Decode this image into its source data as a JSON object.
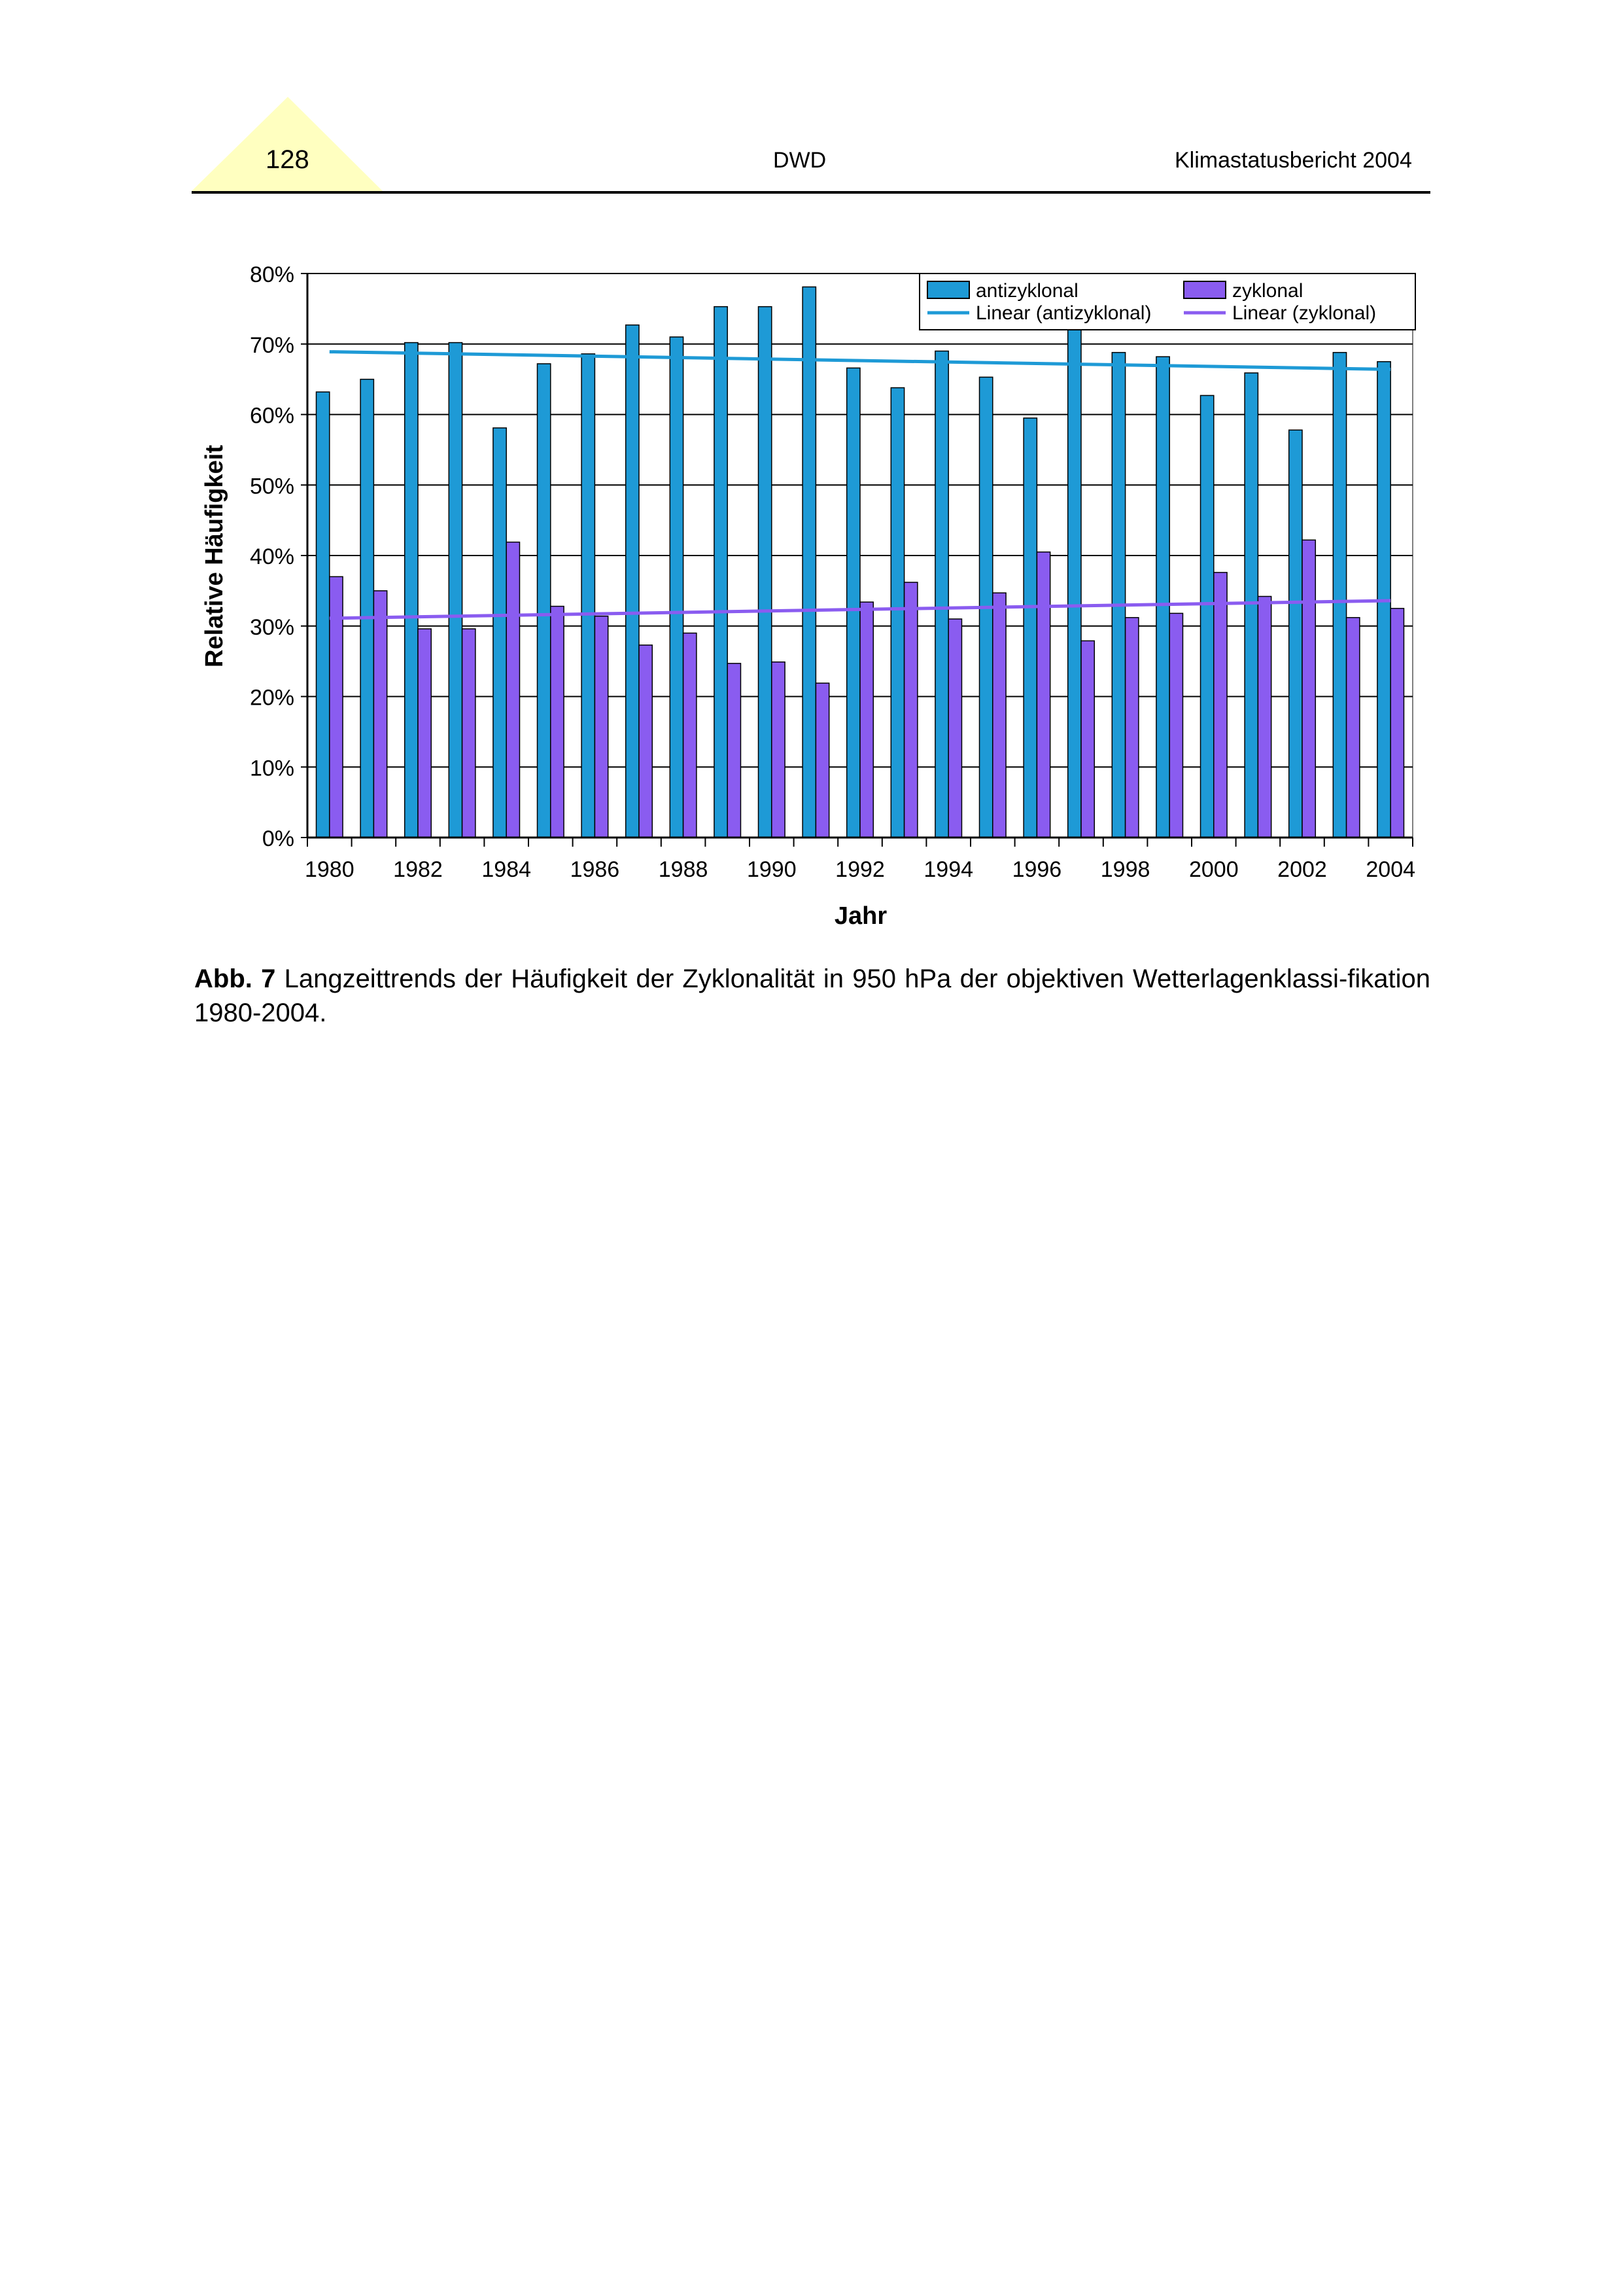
{
  "header": {
    "page_number": "128",
    "center": "DWD",
    "right": "Klimastatusbericht 2004",
    "tab_color": "#ffffc0"
  },
  "caption": {
    "label": "Abb. 7",
    "text": "Langzeittrends der Häufigkeit der Zyklonalität in 950 hPa der objektiven Wetterlagenklassi-fikation 1980-2004."
  },
  "chart_data": {
    "type": "bar",
    "xlabel": "Jahr",
    "ylabel": "Relative Häufigkeit",
    "ylim": [
      0,
      80
    ],
    "y_ticks": [
      "0%",
      "10%",
      "20%",
      "30%",
      "40%",
      "50%",
      "60%",
      "70%",
      "80%"
    ],
    "x_tick_labels": [
      "1980",
      "1982",
      "1984",
      "1986",
      "1988",
      "1990",
      "1992",
      "1994",
      "1996",
      "1998",
      "2000",
      "2002",
      "2004"
    ],
    "categories": [
      1980,
      1981,
      1982,
      1983,
      1984,
      1985,
      1986,
      1987,
      1988,
      1989,
      1990,
      1991,
      1992,
      1993,
      1994,
      1995,
      1996,
      1997,
      1998,
      1999,
      2000,
      2001,
      2002,
      2003,
      2004
    ],
    "grid": true,
    "legend_position": "top-right",
    "series": [
      {
        "name": "antizyklonal",
        "color": "#1e9ad6",
        "values": [
          63.2,
          65.0,
          70.2,
          70.2,
          58.1,
          67.2,
          68.6,
          72.7,
          71.0,
          75.3,
          75.3,
          78.1,
          66.6,
          63.8,
          69.0,
          65.3,
          59.5,
          72.1,
          68.8,
          68.2,
          62.7,
          65.9,
          57.8,
          68.8,
          67.5
        ]
      },
      {
        "name": "zyklonal",
        "color": "#8a5cf0",
        "values": [
          37.0,
          35.0,
          29.6,
          29.6,
          41.9,
          32.8,
          31.4,
          27.3,
          29.0,
          24.7,
          24.9,
          21.9,
          33.4,
          36.2,
          31.0,
          34.7,
          40.5,
          27.9,
          31.2,
          31.8,
          37.6,
          34.2,
          42.2,
          31.2,
          32.5
        ]
      }
    ],
    "trend_lines": [
      {
        "name": "Linear (antizyklonal)",
        "color": "#1e9ad6",
        "start": 68.9,
        "end": 66.4
      },
      {
        "name": "Linear (zyklonal)",
        "color": "#8a5cf0",
        "start": 31.1,
        "end": 33.6
      }
    ]
  }
}
